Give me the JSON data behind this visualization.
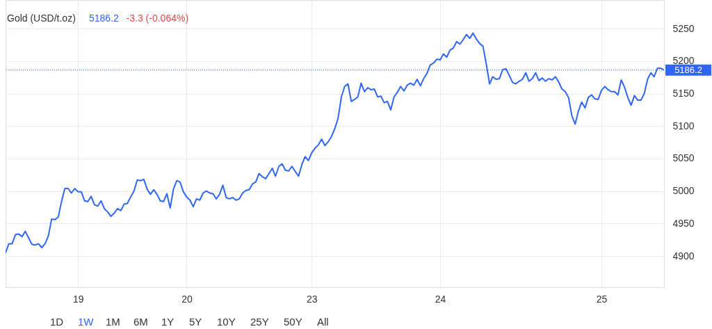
{
  "chart_data": {
    "type": "line",
    "title": "Gold (USD/t.oz)",
    "annotations": [
      "5186.2",
      "-3.3 (-0.064%)",
      "1D",
      "1W",
      "1M",
      "6M",
      "1Y",
      "5Y",
      "10Y",
      "25Y",
      "50Y",
      "All"
    ],
    "categories": [
      null,
      null,
      null,
      null,
      null,
      null,
      null,
      null,
      null,
      null,
      null,
      null,
      null,
      null,
      null,
      null,
      null,
      null,
      null,
      null,
      null,
      null,
      "19",
      null,
      null,
      null,
      null,
      null,
      null,
      null,
      null,
      null,
      null,
      null,
      null,
      null,
      null,
      null,
      null,
      null,
      null,
      null,
      null,
      null,
      null,
      null,
      null,
      null,
      null,
      null,
      null,
      null,
      null,
      null,
      null,
      "20",
      null,
      null,
      null,
      null,
      null,
      null,
      null,
      null,
      null,
      null,
      null,
      null,
      null,
      null,
      null,
      null,
      null,
      null,
      null,
      null,
      null,
      null,
      null,
      null,
      null,
      null,
      null,
      null,
      null,
      null,
      null,
      null,
      null,
      null,
      null,
      null,
      null,
      "23",
      null,
      null,
      null,
      null,
      null,
      null,
      null,
      null,
      null,
      null,
      null,
      null,
      null,
      null,
      null,
      null,
      null,
      null,
      null,
      null,
      null,
      null,
      null,
      null,
      null,
      null,
      null,
      null,
      null,
      null,
      null,
      null,
      null,
      null,
      null,
      null,
      null,
      null,
      "24",
      null,
      null,
      null,
      null,
      null,
      null,
      null,
      null,
      null,
      null,
      null,
      null,
      null,
      null,
      null,
      null,
      null,
      null,
      null,
      null,
      null,
      null,
      null,
      null,
      null,
      null,
      null,
      null,
      null,
      null,
      null,
      null,
      null,
      null,
      null,
      null,
      null,
      null,
      null,
      null,
      null,
      null,
      null,
      null,
      null,
      null,
      null,
      null,
      "25",
      null,
      null,
      null,
      null,
      null,
      null,
      null,
      null,
      null,
      null,
      null,
      null,
      null,
      null,
      null,
      null,
      null,
      null,
      null
    ],
    "series": [
      {
        "color": "#2f66f5",
        "values": [
          4905,
          4919,
          4919,
          4933,
          4934,
          4930,
          4938,
          4928,
          4918,
          4917,
          4919,
          4913,
          4919,
          4931,
          4957,
          4956,
          4960,
          4984,
          5004,
          5004,
          4997,
          5004,
          4999,
          4999,
          4985,
          4984,
          4992,
          4979,
          4977,
          4985,
          4973,
          4968,
          4961,
          4966,
          4973,
          4970,
          4980,
          4981,
          4991,
          5000,
          5017,
          5016,
          5018,
          5003,
          4995,
          5002,
          4995,
          4985,
          4984,
          4996,
          4974,
          5003,
          5016,
          5014,
          4999,
          4991,
          4986,
          4976,
          4988,
          4986,
          4997,
          5000,
          4997,
          4996,
          4988,
          4995,
          5009,
          4990,
          4988,
          4990,
          4986,
          4988,
          4997,
          5001,
          5002,
          5011,
          5014,
          5027,
          5022,
          5019,
          5027,
          5035,
          5023,
          5038,
          5042,
          5032,
          5031,
          5038,
          5030,
          5023,
          5041,
          5053,
          5047,
          5059,
          5066,
          5071,
          5080,
          5070,
          5076,
          5084,
          5096,
          5112,
          5145,
          5161,
          5165,
          5138,
          5141,
          5145,
          5166,
          5153,
          5159,
          5156,
          5157,
          5145,
          5146,
          5136,
          5138,
          5125,
          5145,
          5152,
          5161,
          5154,
          5163,
          5166,
          5163,
          5172,
          5162,
          5173,
          5181,
          5194,
          5197,
          5203,
          5202,
          5211,
          5206,
          5217,
          5220,
          5230,
          5226,
          5233,
          5241,
          5235,
          5243,
          5234,
          5227,
          5223,
          5196,
          5165,
          5176,
          5172,
          5173,
          5187,
          5188,
          5178,
          5167,
          5165,
          5169,
          5172,
          5182,
          5169,
          5173,
          5182,
          5170,
          5174,
          5169,
          5173,
          5171,
          5176,
          5168,
          5157,
          5153,
          5144,
          5116,
          5103,
          5123,
          5137,
          5128,
          5144,
          5148,
          5142,
          5141,
          5155,
          5161,
          5156,
          5153,
          5153,
          5148,
          5171,
          5160,
          5144,
          5132,
          5147,
          5140,
          5140,
          5150,
          5172,
          5182,
          5176,
          5189,
          5189,
          5186.2
        ]
      }
    ],
    "ylim": [
      4852,
      5294
    ],
    "yticks": [
      4900,
      4950,
      5000,
      5050,
      5100,
      5150,
      5200,
      5250
    ],
    "grid": true,
    "line_style": "solid",
    "ref_lines": [
      {
        "axis": "y",
        "value": 5186.2,
        "label": "5186.2",
        "color": "#2f66f5",
        "line_style": "dotted"
      }
    ]
  }
}
